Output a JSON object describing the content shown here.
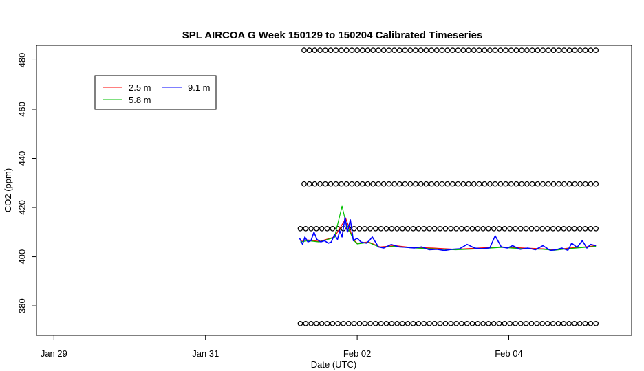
{
  "chart_data": {
    "type": "line",
    "title": "SPL AIRCOA G  Week 150129 to 150204  Calibrated Timeseries",
    "xlabel": "Date (UTC)",
    "ylabel": "CO2 (ppm)",
    "x_ticks": [
      {
        "label": "Jan 29",
        "day": 29
      },
      {
        "label": "Jan 31",
        "day": 31
      },
      {
        "label": "Feb 02",
        "day": 33
      },
      {
        "label": "Feb 04",
        "day": 35
      }
    ],
    "y_ticks": [
      380,
      400,
      420,
      440,
      460,
      480
    ],
    "xlim": [
      28.77,
      36.62
    ],
    "ylim": [
      368,
      486
    ],
    "legend": {
      "placement": "top-left",
      "entries": [
        {
          "name": "2.5 m",
          "color": "#ff0000"
        },
        {
          "name": "5.8 m",
          "color": "#00c000"
        },
        {
          "name": "9.1 m",
          "color": "#0000ff"
        }
      ]
    },
    "series": [
      {
        "name": "2.5 m",
        "color": "#ff0000",
        "x": [
          32.25,
          32.35,
          32.5,
          32.7,
          32.85,
          32.95,
          33.0,
          33.15,
          33.3,
          33.5,
          33.7,
          34.0,
          34.3,
          34.6,
          34.9,
          35.2,
          35.45,
          35.6,
          35.8,
          36.0,
          36.15
        ],
        "y": [
          406.5,
          406.8,
          406.2,
          408.0,
          415.5,
          407.0,
          405.5,
          406.0,
          404.0,
          404.5,
          403.8,
          403.5,
          403.0,
          403.5,
          404.0,
          403.5,
          403.2,
          402.8,
          403.5,
          404.0,
          404.5
        ]
      },
      {
        "name": "5.8 m",
        "color": "#00c000",
        "x": [
          32.25,
          32.35,
          32.5,
          32.7,
          32.8,
          32.85,
          32.95,
          33.0,
          33.15,
          33.3,
          33.5,
          33.7,
          34.0,
          34.3,
          34.6,
          34.9,
          35.2,
          35.45,
          35.6,
          35.8,
          36.0,
          36.15
        ],
        "y": [
          406.0,
          406.5,
          406.0,
          407.8,
          420.5,
          414.0,
          406.8,
          405.2,
          405.8,
          403.8,
          404.2,
          403.6,
          403.2,
          402.8,
          403.2,
          403.8,
          403.2,
          403.0,
          402.6,
          403.3,
          403.8,
          404.2
        ]
      },
      {
        "name": "9.1 m",
        "color": "#0000ff",
        "x": [
          32.24,
          32.28,
          32.31,
          32.35,
          32.39,
          32.43,
          32.47,
          32.52,
          32.57,
          32.62,
          32.66,
          32.7,
          32.74,
          32.77,
          32.8,
          32.84,
          32.87,
          32.91,
          32.95,
          33.0,
          33.05,
          33.12,
          33.16,
          33.2,
          33.28,
          33.35,
          33.45,
          33.55,
          33.65,
          33.75,
          33.85,
          33.95,
          34.05,
          34.15,
          34.25,
          34.35,
          34.45,
          34.55,
          34.65,
          34.75,
          34.82,
          34.9,
          34.98,
          35.05,
          35.15,
          35.25,
          35.35,
          35.45,
          35.55,
          35.62,
          35.7,
          35.78,
          35.83,
          35.9,
          35.97,
          36.03,
          36.08,
          36.15
        ],
        "y": [
          407.5,
          405.0,
          408.0,
          406.0,
          406.5,
          410.0,
          407.0,
          406.0,
          406.5,
          405.5,
          406.0,
          409.0,
          407.0,
          410.5,
          408.0,
          416.0,
          410.0,
          415.0,
          406.5,
          407.5,
          406.0,
          405.5,
          406.5,
          408.0,
          404.0,
          403.5,
          405.0,
          404.0,
          403.8,
          403.5,
          404.0,
          402.8,
          403.0,
          402.5,
          403.0,
          403.2,
          405.0,
          403.5,
          403.2,
          403.6,
          408.5,
          404.0,
          403.5,
          404.5,
          403.0,
          403.5,
          402.8,
          404.5,
          402.5,
          402.8,
          403.5,
          402.6,
          405.5,
          403.8,
          406.5,
          403.5,
          405.0,
          404.5
        ]
      }
    ],
    "flag_rows": [
      {
        "y": 484.0,
        "x_start": 32.3,
        "x_end": 36.15,
        "count": 56
      },
      {
        "y": 429.6,
        "x_start": 32.3,
        "x_end": 36.15,
        "count": 56
      },
      {
        "y": 411.4,
        "x_start": 32.25,
        "x_end": 36.15,
        "count": 56
      },
      {
        "y": 372.8,
        "x_start": 32.25,
        "x_end": 36.15,
        "count": 56
      }
    ]
  }
}
